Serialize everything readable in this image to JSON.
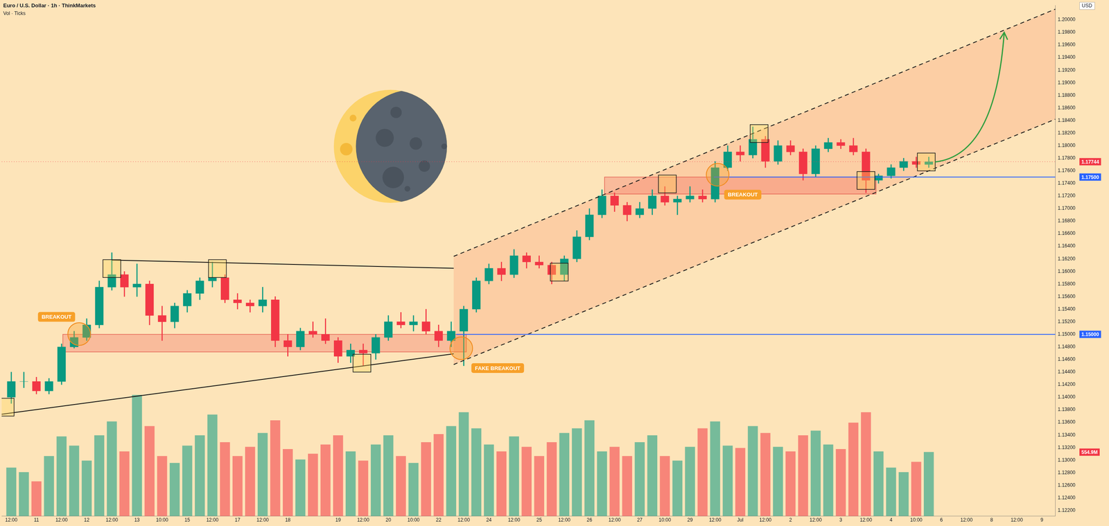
{
  "chart_data": {
    "type": "candlestick",
    "title": "Euro / U.S. Dollar · 1h · ThinkMarkets",
    "ylabel": "USD",
    "categories": [
      "12:00",
      null,
      "11",
      null,
      "12:00",
      null,
      "12",
      null,
      "12:00",
      null,
      "13",
      null,
      "10:00",
      null,
      "15",
      null,
      "12:00",
      null,
      "17",
      null,
      "12:00",
      null,
      "18",
      null,
      null,
      null,
      "19",
      null,
      "12:00",
      null,
      "20",
      null,
      "10:00",
      null,
      "22",
      null,
      "12:00",
      null,
      "24",
      null,
      "12:00",
      null,
      "25",
      null,
      "12:00",
      null,
      "26",
      null,
      "12:00",
      null,
      "27",
      null,
      "10:00",
      null,
      "29",
      null,
      "12:00",
      null,
      "Jul",
      null,
      "12:00",
      null,
      "2",
      null,
      "12:00",
      null,
      "3",
      null,
      "12:00",
      null,
      "4",
      null,
      "10:00",
      null,
      "6",
      null,
      "12:00",
      null,
      "8",
      null,
      "12:00",
      null,
      "9",
      null
    ],
    "series": [
      {
        "type": "candlestick",
        "color": "#089981",
        "open": [
          1.14,
          1.1425,
          1.1425,
          1.141,
          1.1425,
          1.148,
          1.1495,
          1.1515,
          1.1575,
          1.1595,
          1.1575,
          1.158,
          1.153,
          1.152,
          1.1545,
          1.1565,
          1.1585,
          1.159,
          1.1555,
          1.155,
          1.1545,
          1.1555,
          1.149,
          1.148,
          1.1505,
          1.15,
          1.149,
          1.1465,
          1.1475,
          1.147,
          1.1495,
          1.152,
          1.1515,
          1.152,
          1.1505,
          1.149,
          1.1505,
          1.154,
          1.1585,
          1.1605,
          1.1595,
          1.1625,
          1.1615,
          1.161,
          1.1595,
          1.162,
          1.1655,
          1.169,
          1.172,
          1.1705,
          1.169,
          1.17,
          1.172,
          1.171,
          1.1715,
          1.172,
          1.1715,
          1.1765,
          1.179,
          1.1785,
          1.181,
          1.1775,
          1.18,
          1.179,
          1.1755,
          1.1795,
          1.1805,
          1.18,
          1.179,
          1.1745,
          1.1752,
          1.1765,
          1.1775,
          1.177,
          null,
          null,
          null,
          null,
          null,
          null,
          null,
          null,
          null,
          null
        ],
        "high": [
          1.144,
          1.144,
          1.1432,
          1.143,
          1.1485,
          1.1505,
          1.1525,
          1.1585,
          1.163,
          1.16,
          1.1612,
          1.1585,
          1.1545,
          1.155,
          1.157,
          1.159,
          1.1615,
          1.1595,
          1.1565,
          1.1555,
          1.1575,
          1.156,
          1.15,
          1.151,
          1.152,
          1.1525,
          1.1495,
          1.1485,
          1.1485,
          1.15,
          1.153,
          1.1535,
          1.153,
          1.154,
          1.1515,
          1.152,
          1.1545,
          1.159,
          1.1612,
          1.1615,
          1.1635,
          1.163,
          1.1625,
          1.1615,
          1.1625,
          1.1665,
          1.17,
          1.173,
          1.1725,
          1.171,
          1.171,
          1.173,
          1.1735,
          1.172,
          1.1735,
          1.173,
          1.1775,
          1.18,
          1.18,
          1.183,
          1.1815,
          1.1808,
          1.1808,
          1.1795,
          1.18,
          1.1812,
          1.181,
          1.1812,
          1.1795,
          1.1755,
          1.177,
          1.178,
          1.1782,
          1.1782,
          null,
          null,
          null,
          null,
          null,
          null,
          null,
          null,
          null,
          null
        ],
        "low": [
          1.139,
          1.1415,
          1.1405,
          1.1405,
          1.142,
          1.1478,
          1.149,
          1.151,
          1.157,
          1.156,
          1.156,
          1.1515,
          1.149,
          1.151,
          1.1535,
          1.1555,
          1.1575,
          1.155,
          1.154,
          1.1535,
          1.1535,
          1.148,
          1.1465,
          1.1475,
          1.1495,
          1.1485,
          1.1455,
          1.1455,
          1.145,
          1.146,
          1.149,
          1.151,
          1.1505,
          1.15,
          1.148,
          1.148,
          1.145,
          1.1535,
          1.158,
          1.1585,
          1.159,
          1.1605,
          1.1605,
          1.158,
          1.1585,
          1.1615,
          1.165,
          1.1685,
          1.1695,
          1.168,
          1.1685,
          1.169,
          1.1705,
          1.169,
          1.171,
          1.171,
          1.171,
          1.176,
          1.1775,
          1.178,
          1.1765,
          1.177,
          1.1785,
          1.1745,
          1.175,
          1.179,
          1.1795,
          1.1785,
          1.1725,
          1.174,
          1.1748,
          1.176,
          1.1765,
          1.1765,
          null,
          null,
          null,
          null,
          null,
          null,
          null,
          null,
          null,
          null
        ],
        "close": [
          1.1425,
          1.1425,
          1.141,
          1.1425,
          1.148,
          1.1495,
          1.1515,
          1.1575,
          1.1595,
          1.1575,
          1.158,
          1.153,
          1.152,
          1.1545,
          1.1565,
          1.1585,
          1.159,
          1.1555,
          1.155,
          1.1545,
          1.1555,
          1.149,
          1.148,
          1.1505,
          1.15,
          1.149,
          1.1465,
          1.1475,
          1.147,
          1.1495,
          1.152,
          1.1515,
          1.152,
          1.1505,
          1.149,
          1.1505,
          1.154,
          1.1585,
          1.1605,
          1.1595,
          1.1625,
          1.1615,
          1.161,
          1.1595,
          1.162,
          1.1655,
          1.169,
          1.172,
          1.1705,
          1.169,
          1.17,
          1.172,
          1.171,
          1.1715,
          1.172,
          1.1715,
          1.1765,
          1.179,
          1.1785,
          1.181,
          1.1775,
          1.18,
          1.179,
          1.1755,
          1.1795,
          1.1805,
          1.18,
          1.179,
          1.1745,
          1.1752,
          1.1765,
          1.1775,
          1.177,
          1.17744,
          null,
          null,
          null,
          null,
          null,
          null,
          null,
          null,
          null,
          null
        ]
      },
      {
        "name": "Vol · Ticks",
        "type": "bar",
        "axis": "y2",
        "color": "#089981",
        "values": [
          420,
          380,
          300,
          520,
          690,
          610,
          480,
          700,
          820,
          560,
          1050,
          780,
          520,
          460,
          610,
          700,
          880,
          640,
          520,
          600,
          720,
          830,
          580,
          490,
          540,
          620,
          700,
          560,
          480,
          620,
          700,
          520,
          460,
          640,
          710,
          780,
          900,
          760,
          620,
          560,
          690,
          600,
          520,
          640,
          720,
          760,
          830,
          560,
          600,
          520,
          640,
          700,
          520,
          480,
          600,
          760,
          820,
          610,
          590,
          780,
          720,
          600,
          560,
          700,
          740,
          620,
          580,
          810,
          900,
          560,
          420,
          380,
          470,
          554.9,
          null,
          null,
          null,
          null,
          null,
          null,
          null,
          null,
          null,
          null
        ]
      }
    ],
    "xlim": [
      -0.77,
      83.07
    ],
    "ylim": [
      1.1211,
      1.2023
    ],
    "yticks": [
      {
        "value": 1.122,
        "label": "1.12200"
      },
      {
        "value": 1.124,
        "label": "1.12400"
      },
      {
        "value": 1.126,
        "label": "1.12600"
      },
      {
        "value": 1.128,
        "label": "1.12800"
      },
      {
        "value": 1.13,
        "label": "1.13000"
      },
      {
        "value": 1.132,
        "label": "1.13200"
      },
      {
        "value": 1.134,
        "label": "1.13400"
      },
      {
        "value": 1.136,
        "label": "1.13600"
      },
      {
        "value": 1.138,
        "label": "1.13800"
      },
      {
        "value": 1.14,
        "label": "1.14000"
      },
      {
        "value": 1.142,
        "label": "1.14200"
      },
      {
        "value": 1.144,
        "label": "1.14400"
      },
      {
        "value": 1.146,
        "label": "1.14600"
      },
      {
        "value": 1.148,
        "label": "1.14800"
      },
      {
        "value": 1.15,
        "label": "1.15000"
      },
      {
        "value": 1.152,
        "label": "1.15200"
      },
      {
        "value": 1.154,
        "label": "1.15400"
      },
      {
        "value": 1.156,
        "label": "1.15600"
      },
      {
        "value": 1.158,
        "label": "1.15800"
      },
      {
        "value": 1.16,
        "label": "1.16000"
      },
      {
        "value": 1.162,
        "label": "1.16200"
      },
      {
        "value": 1.164,
        "label": "1.16400"
      },
      {
        "value": 1.166,
        "label": "1.16600"
      },
      {
        "value": 1.168,
        "label": "1.16800"
      },
      {
        "value": 1.17,
        "label": "1.17000"
      },
      {
        "value": 1.172,
        "label": "1.17200"
      },
      {
        "value": 1.174,
        "label": "1.17400"
      },
      {
        "value": 1.176,
        "label": "1.17600"
      },
      {
        "value": 1.178,
        "label": "1.17800"
      },
      {
        "value": 1.18,
        "label": "1.18000"
      },
      {
        "value": 1.182,
        "label": "1.18200"
      },
      {
        "value": 1.184,
        "label": "1.18400"
      },
      {
        "value": 1.186,
        "label": "1.18600"
      },
      {
        "value": 1.188,
        "label": "1.18800"
      },
      {
        "value": 1.19,
        "label": "1.19000"
      },
      {
        "value": 1.192,
        "label": "1.19200"
      },
      {
        "value": 1.194,
        "label": "1.19400"
      },
      {
        "value": 1.196,
        "label": "1.19600"
      },
      {
        "value": 1.198,
        "label": "1.19800"
      },
      {
        "value": 1.2,
        "label": "1.20000"
      }
    ],
    "y2lim": [
      0,
      4430
    ],
    "grid": false,
    "annotations": {
      "levels": [
        {
          "value": 1.17744,
          "label": "1.17744",
          "color": "#f23645",
          "from": -0.77,
          "line_style": "dotted"
        },
        {
          "value": 1.175,
          "label": "1.17500",
          "color": "#2962ff",
          "from": 55.9,
          "line_style": "solid"
        },
        {
          "value": 1.15,
          "label": "1.15000",
          "color": "#2962ff",
          "from": 35.4,
          "line_style": "solid"
        }
      ],
      "volume_tag": {
        "value": 554.9,
        "label": "554.9M",
        "color": "#f23645"
      },
      "zones": [
        {
          "x": [
            4.1,
            36.2
          ],
          "y": [
            1.1472,
            1.15
          ]
        },
        {
          "x": [
            47.2,
            68.8
          ],
          "y": [
            1.1723,
            1.175
          ]
        }
      ],
      "channel": {
        "lower": [
          [
            35.2,
            1.1452
          ],
          [
            83.07,
            1.1842
          ]
        ],
        "upper": [
          [
            35.2,
            1.1624
          ],
          [
            83.07,
            1.2017
          ]
        ]
      },
      "trendlines": [
        [
          [
            8,
            1.1618
          ],
          [
            35.2,
            1.1605
          ]
        ],
        [
          [
            -0.77,
            1.1373
          ],
          [
            35.2,
            1.1469
          ]
        ]
      ],
      "arrow": {
        "points": [
          [
            73.5,
            1.1774
          ],
          [
            78.3,
            1.1785
          ],
          [
            79,
            1.198
          ]
        ],
        "color": "#2e9e3e"
      },
      "circles": [
        [
          5.4,
          1.15005
        ],
        [
          35.8,
          1.14779
        ],
        [
          56.2,
          1.17537
        ]
      ],
      "boxes": [
        [
          -0.49,
          1.13842
        ],
        [
          8,
          1.16045
        ],
        [
          16.4,
          1.16045
        ],
        [
          27.9,
          1.14542
        ],
        [
          43.6,
          1.15989
        ],
        [
          52.2,
          1.1739
        ],
        [
          59.5,
          1.18192
        ],
        [
          68,
          1.17446
        ],
        [
          72.8,
          1.1774
        ]
      ],
      "texts": [
        {
          "text": "BREAKOUT",
          "x": 3.6,
          "y": 1.15277
        },
        {
          "text": "FAKE BREAKOUT",
          "x": 38.7,
          "y": 1.14463
        },
        {
          "text": "BREAKOUT",
          "x": 58.2,
          "y": 1.1722
        }
      ]
    }
  }
}
